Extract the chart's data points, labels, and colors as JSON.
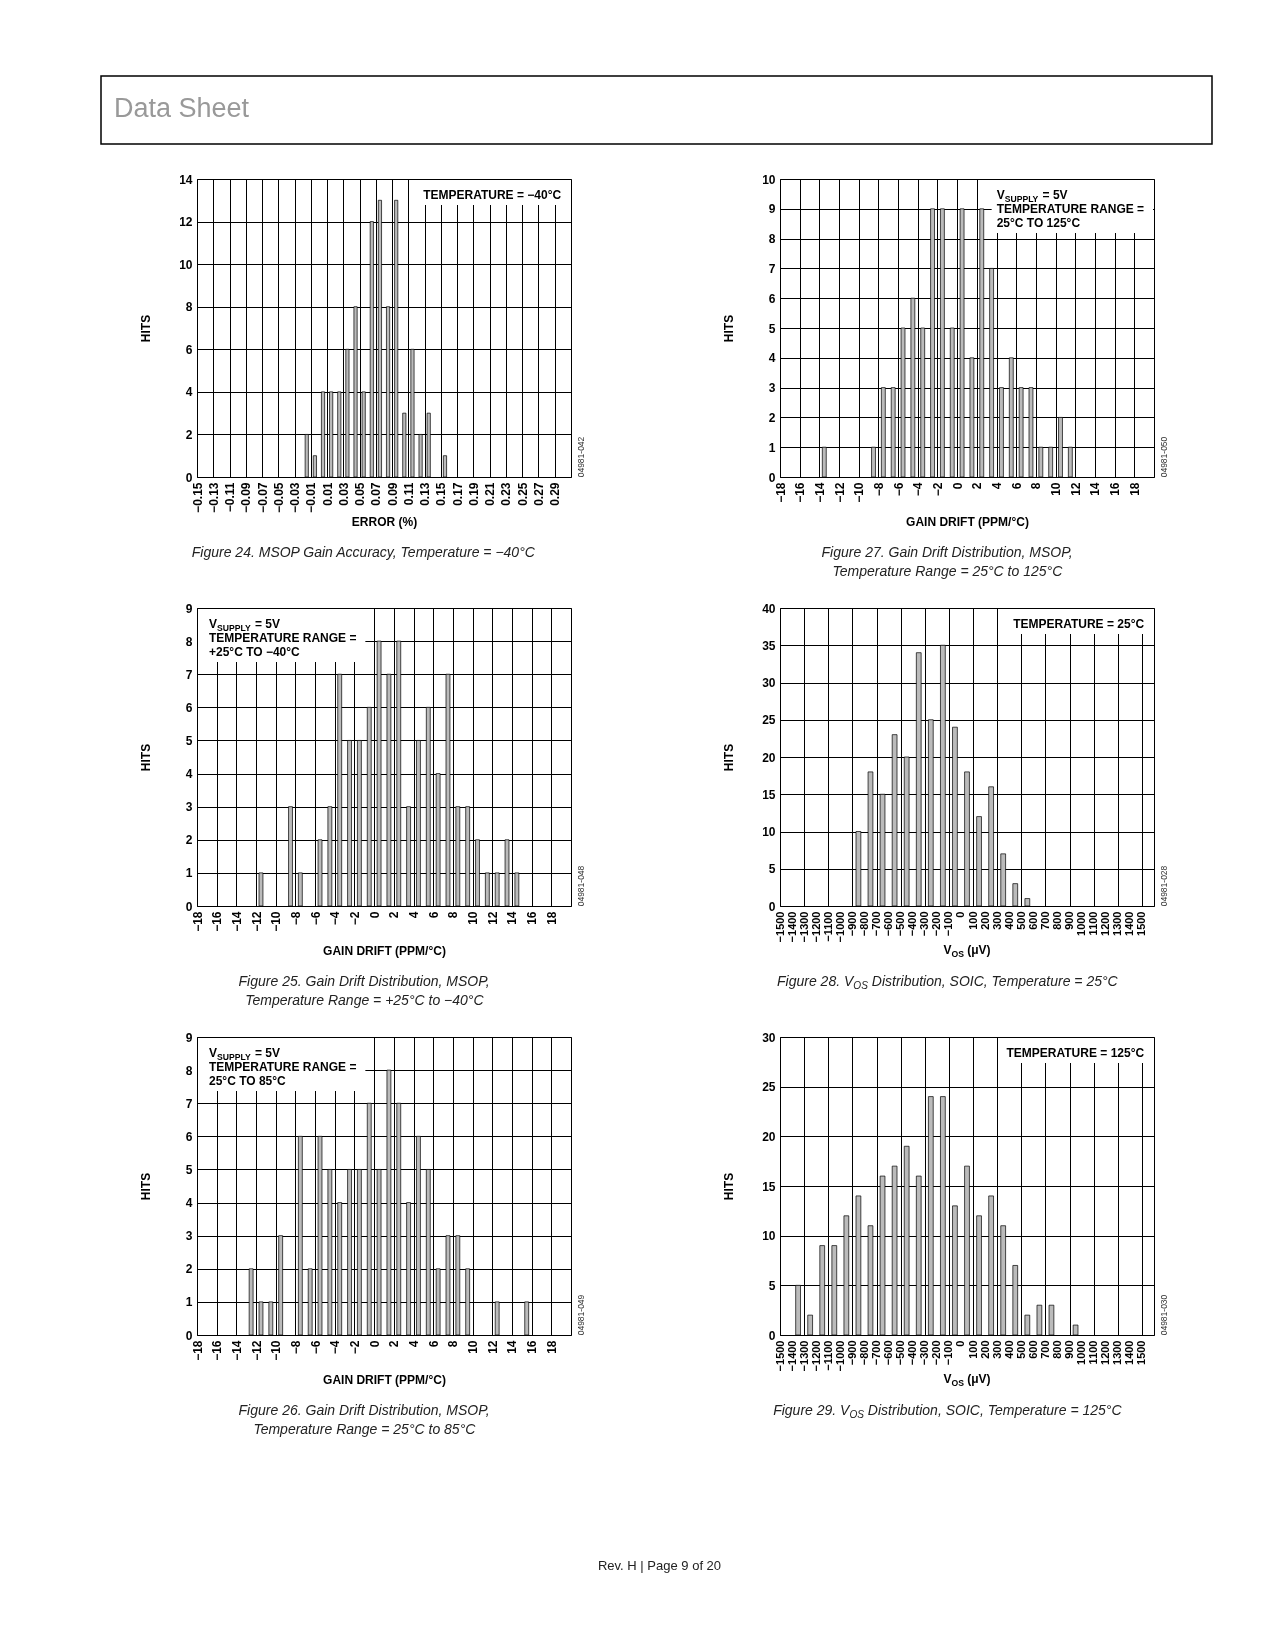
{
  "chart_data": [
    {
      "type": "other",
      "title": "Data Sheet"
    },
    {
      "type": "bar",
      "xlabel": "ERROR (%)",
      "ylabel": "HITS",
      "color": "#bbbbbb",
      "grid": true,
      "x": [
        -0.015,
        -0.005,
        0.005,
        0.015,
        0.025,
        0.035,
        0.045,
        0.055,
        0.065,
        0.075,
        0.085,
        0.095,
        0.105,
        0.115,
        0.125,
        0.135,
        0.155
      ],
      "values": [
        2,
        1,
        4,
        4,
        4,
        6,
        8,
        4,
        12,
        13,
        8,
        13,
        3,
        6,
        2,
        3,
        1
      ],
      "xlim": [
        -0.15,
        0.31
      ],
      "xticks": [
        -0.15,
        -0.13,
        -0.11,
        -0.09,
        -0.07,
        -0.05,
        -0.03,
        -0.01,
        0.01,
        0.03,
        0.05,
        0.07,
        0.09,
        0.11,
        0.13,
        0.15,
        0.17,
        0.19,
        0.21,
        0.23,
        0.25,
        0.27,
        0.29
      ],
      "ylim": [
        0,
        14
      ],
      "yticks": [
        0,
        2,
        4,
        6,
        8,
        10,
        12,
        14
      ],
      "annotations": [
        "TEMPERATURE = −40°C",
        "04981-042",
        "Figure 24. MSOP Gain Accuracy, Temperature = −40°C"
      ]
    },
    {
      "type": "bar",
      "xlabel": "GAIN DRIFT (PPM/°C)",
      "ylabel": "HITS",
      "color": "#bbbbbb",
      "grid": true,
      "x": [
        -13.5,
        -8.5,
        -7.5,
        -6.5,
        -5.5,
        -4.5,
        -3.5,
        -2.5,
        -1.5,
        -0.5,
        0.5,
        1.5,
        2.5,
        3.5,
        4.5,
        5.5,
        6.5,
        7.5,
        8.5,
        9.5,
        10.5,
        11.5
      ],
      "values": [
        1,
        1,
        3,
        3,
        5,
        6,
        5,
        9,
        9,
        5,
        9,
        4,
        9,
        7,
        3,
        4,
        3,
        3,
        1,
        1,
        2,
        1
      ],
      "xlim": [
        -18,
        20
      ],
      "xticks": [
        -18,
        -16,
        -14,
        -12,
        -10,
        -8,
        -6,
        -4,
        -2,
        0,
        2,
        4,
        6,
        8,
        10,
        12,
        14,
        16,
        18
      ],
      "ylim": [
        0,
        10
      ],
      "yticks": [
        0,
        1,
        2,
        3,
        4,
        5,
        6,
        7,
        8,
        9,
        10
      ],
      "annotations": [
        "V$_{SUPPLY}$ = 5V\nTEMPERATURE RANGE =\n25°C TO 125°C",
        "04981-050",
        "Figure 27. Gain Drift Distribution, MSOP,\nTemperature Range = 25°C to 125°C"
      ]
    },
    {
      "type": "bar",
      "xlabel": "GAIN DRIFT (PPM/°C)",
      "ylabel": "HITS",
      "color": "#bbbbbb",
      "grid": true,
      "x": [
        -11.5,
        -8.5,
        -7.5,
        -5.5,
        -4.5,
        -3.5,
        -2.5,
        -1.5,
        -0.5,
        0.5,
        1.5,
        2.5,
        3.5,
        4.5,
        5.5,
        6.5,
        7.5,
        8.5,
        9.5,
        10.5,
        11.5,
        12.5,
        13.5,
        14.5
      ],
      "values": [
        1,
        3,
        1,
        2,
        3,
        7,
        5,
        5,
        6,
        8,
        7,
        8,
        3,
        5,
        6,
        4,
        7,
        3,
        3,
        2,
        1,
        1,
        2,
        1
      ],
      "xlim": [
        -18,
        20
      ],
      "xticks": [
        -18,
        -16,
        -14,
        -12,
        -10,
        -8,
        -6,
        -4,
        -2,
        0,
        2,
        4,
        6,
        8,
        10,
        12,
        14,
        16,
        18
      ],
      "ylim": [
        0,
        9
      ],
      "yticks": [
        0,
        1,
        2,
        3,
        4,
        5,
        6,
        7,
        8,
        9
      ],
      "annotations": [
        "V$_{SUPPLY}$ = 5V\nTEMPERATURE RANGE =\n+25°C TO −40°C",
        "04981-048",
        "Figure 25. Gain Drift Distribution, MSOP,\nTemperature Range = +25°C to −40°C"
      ]
    },
    {
      "type": "bar",
      "xlabel": "V$_{OS}$ (μV)",
      "ylabel": "HITS",
      "color": "#bbbbbb",
      "grid": true,
      "x": [
        -850,
        -750,
        -650,
        -550,
        -450,
        -350,
        -250,
        -150,
        -50,
        50,
        150,
        250,
        350,
        450,
        550
      ],
      "values": [
        10,
        18,
        15,
        23,
        20,
        34,
        25,
        35,
        24,
        18,
        12,
        16,
        7,
        3,
        1
      ],
      "xlim": [
        -1500,
        1600
      ],
      "xticks": [
        -1500,
        -1400,
        -1300,
        -1200,
        -1100,
        -1000,
        -900,
        -800,
        -700,
        -600,
        -500,
        -400,
        -300,
        -200,
        -100,
        0,
        100,
        200,
        300,
        400,
        500,
        600,
        700,
        800,
        900,
        1000,
        1100,
        1200,
        1300,
        1400,
        1500
      ],
      "ylim": [
        0,
        40
      ],
      "yticks": [
        0,
        5,
        10,
        15,
        20,
        25,
        30,
        35,
        40
      ],
      "annotations": [
        "TEMPERATURE = 25°C",
        "04981-028",
        "Figure 28. V$_{OS}$ Distribution, SOIC, Temperature = 25°C"
      ]
    },
    {
      "type": "bar",
      "xlabel": "GAIN DRIFT (PPM/°C)",
      "ylabel": "HITS",
      "color": "#bbbbbb",
      "grid": true,
      "x": [
        -12.5,
        -11.5,
        -10.5,
        -9.5,
        -7.5,
        -6.5,
        -5.5,
        -4.5,
        -3.5,
        -2.5,
        -1.5,
        -0.5,
        0.5,
        1.5,
        2.5,
        3.5,
        4.5,
        5.5,
        6.5,
        7.5,
        8.5,
        9.5,
        12.5,
        15.5
      ],
      "values": [
        2,
        1,
        1,
        3,
        6,
        2,
        6,
        5,
        4,
        5,
        5,
        7,
        5,
        8,
        7,
        4,
        6,
        5,
        2,
        3,
        3,
        2,
        1,
        1
      ],
      "xlim": [
        -18,
        20
      ],
      "xticks": [
        -18,
        -16,
        -14,
        -12,
        -10,
        -8,
        -6,
        -4,
        -2,
        0,
        2,
        4,
        6,
        8,
        10,
        12,
        14,
        16,
        18
      ],
      "ylim": [
        0,
        9
      ],
      "yticks": [
        0,
        1,
        2,
        3,
        4,
        5,
        6,
        7,
        8,
        9
      ],
      "annotations": [
        "V$_{SUPPLY}$ = 5V\nTEMPERATURE RANGE =\n25°C TO 85°C",
        "04981-049",
        "Figure 26. Gain Drift Distribution, MSOP,\nTemperature Range = 25°C to 85°C"
      ]
    },
    {
      "type": "bar",
      "xlabel": "V$_{OS}$ (μV)",
      "ylabel": "HITS",
      "color": "#bbbbbb",
      "grid": true,
      "x": [
        -1350,
        -1250,
        -1150,
        -1050,
        -950,
        -850,
        -750,
        -650,
        -550,
        -450,
        -350,
        -250,
        -150,
        -50,
        50,
        150,
        250,
        350,
        450,
        550,
        650,
        750,
        950
      ],
      "values": [
        5,
        2,
        9,
        9,
        12,
        14,
        11,
        16,
        17,
        19,
        16,
        24,
        24,
        13,
        17,
        12,
        14,
        11,
        7,
        2,
        3,
        3,
        1
      ],
      "xlim": [
        -1500,
        1600
      ],
      "xticks": [
        -1500,
        -1400,
        -1300,
        -1200,
        -1100,
        -1000,
        -900,
        -800,
        -700,
        -600,
        -500,
        -400,
        -300,
        -200,
        -100,
        0,
        100,
        200,
        300,
        400,
        500,
        600,
        700,
        800,
        900,
        1000,
        1100,
        1200,
        1300,
        1400,
        1500
      ],
      "ylim": [
        0,
        30
      ],
      "yticks": [
        0,
        5,
        10,
        15,
        20,
        25,
        30
      ],
      "annotations": [
        "TEMPERATURE = 125°C",
        "04981-030",
        "Figure 29. V$_{OS}$ Distribution, SOIC, Temperature = 125°C"
      ]
    },
    {
      "type": "other",
      "annotations": [
        "Rev. H | Page 9 of 20"
      ]
    }
  ]
}
